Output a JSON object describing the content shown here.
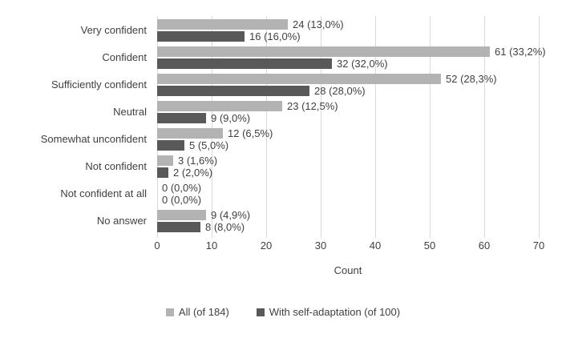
{
  "chart_data": {
    "type": "bar",
    "orientation": "horizontal",
    "title": "",
    "xlabel": "Count",
    "categories": [
      "Very confident",
      "Confident",
      "Sufficiently confident",
      "Neutral",
      "Somewhat unconfident",
      "Not confident",
      "Not confident at all",
      "No answer"
    ],
    "series": [
      {
        "name": "All (of 184)",
        "color": "#b3b3b3",
        "values": [
          24,
          61,
          52,
          23,
          12,
          3,
          0,
          9
        ],
        "labels": [
          "24 (13,0%)",
          "61 (33,2%)",
          "52 (28,3%)",
          "23 (12,5%)",
          "12 (6,5%)",
          "3 (1,6%)",
          "0 (0,0%)",
          "9 (4,9%)"
        ]
      },
      {
        "name": "With self-adaptation (of 100)",
        "color": "#595959",
        "values": [
          16,
          32,
          28,
          9,
          5,
          2,
          0,
          8
        ],
        "labels": [
          "16 (16,0%)",
          "32 (32,0%)",
          "28 (28,0%)",
          "9 (9,0%)",
          "5 (5,0%)",
          "2 (2,0%)",
          "0 (0,0%)",
          "8 (8,0%)"
        ]
      }
    ],
    "xlim": [
      0,
      70
    ],
    "xticks": [
      "0",
      "10",
      "20",
      "30",
      "40",
      "50",
      "60",
      "70"
    ],
    "grid": "vertical",
    "legend_position": "bottom",
    "colors": {
      "gridline": "#d9d9d9",
      "text": "#404040",
      "background": "#ffffff"
    }
  }
}
